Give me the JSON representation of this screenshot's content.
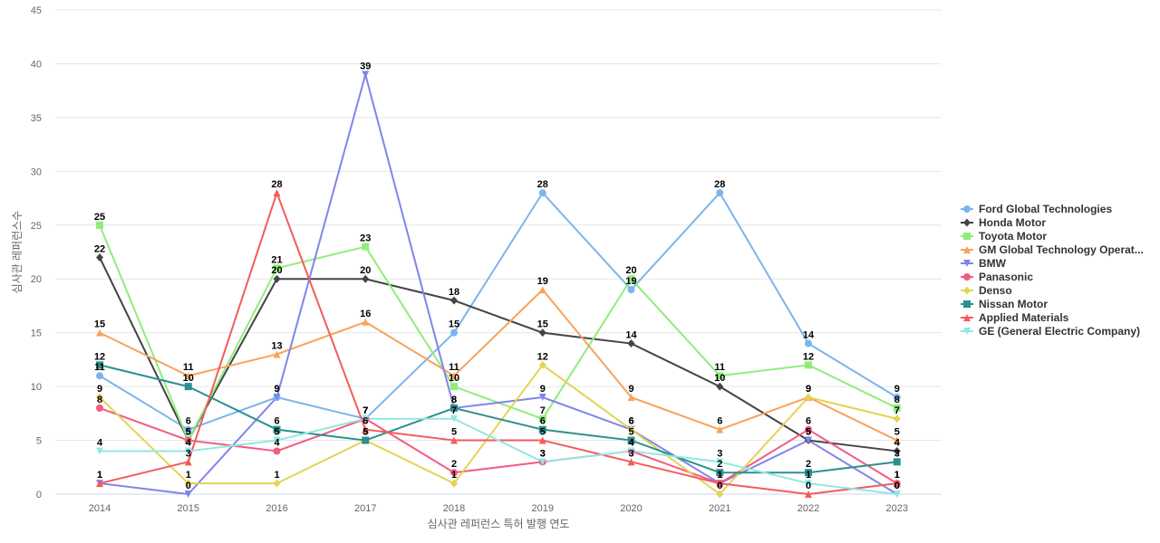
{
  "chart_data": {
    "type": "line",
    "title": "",
    "xlabel": "심사관 레퍼런스 특허 발행 연도",
    "ylabel": "심사관 레퍼런스수",
    "categories": [
      "2014",
      "2015",
      "2016",
      "2017",
      "2018",
      "2019",
      "2020",
      "2021",
      "2022",
      "2023"
    ],
    "ylim": [
      0,
      45
    ],
    "yticks": [
      0,
      5,
      10,
      15,
      20,
      25,
      30,
      35,
      40,
      45
    ],
    "grid": true,
    "legend_position": "right",
    "series": [
      {
        "name": "Ford Global Technologies",
        "values": [
          11,
          6,
          9,
          7,
          15,
          28,
          19,
          28,
          14,
          9
        ],
        "color": "#7cb5ec",
        "marker": "circle"
      },
      {
        "name": "Honda Motor",
        "values": [
          22,
          5,
          20,
          20,
          18,
          15,
          14,
          10,
          5,
          4
        ],
        "color": "#434348",
        "marker": "diamond"
      },
      {
        "name": "Toyota Motor",
        "values": [
          25,
          5,
          21,
          23,
          10,
          7,
          20,
          11,
          12,
          8
        ],
        "color": "#90ed7d",
        "marker": "square"
      },
      {
        "name": "GM Global Technology Operat...",
        "values": [
          15,
          11,
          13,
          16,
          11,
          19,
          9,
          6,
          9,
          5
        ],
        "color": "#f7a35c",
        "marker": "triangle"
      },
      {
        "name": "BMW",
        "values": [
          1,
          0,
          9,
          39,
          8,
          9,
          6,
          1,
          5,
          0
        ],
        "color": "#8085e9",
        "marker": "triangle-down"
      },
      {
        "name": "Panasonic",
        "values": [
          8,
          5,
          4,
          7,
          2,
          3,
          4,
          1,
          6,
          1
        ],
        "color": "#f15c80",
        "marker": "circle"
      },
      {
        "name": "Denso",
        "values": [
          9,
          1,
          1,
          5,
          1,
          12,
          6,
          0,
          9,
          7
        ],
        "color": "#e4d354",
        "marker": "diamond"
      },
      {
        "name": "Nissan Motor",
        "values": [
          12,
          10,
          6,
          5,
          8,
          6,
          5,
          2,
          2,
          3
        ],
        "color": "#2b908f",
        "marker": "square"
      },
      {
        "name": "Applied Materials",
        "values": [
          1,
          3,
          28,
          6,
          5,
          5,
          3,
          1,
          0,
          1
        ],
        "color": "#f45b5b",
        "marker": "triangle"
      },
      {
        "name": "GE (General Electric Company)",
        "values": [
          4,
          4,
          5,
          7,
          7,
          3,
          4,
          3,
          1,
          0
        ],
        "color": "#91e8e1",
        "marker": "triangle-down"
      }
    ]
  }
}
